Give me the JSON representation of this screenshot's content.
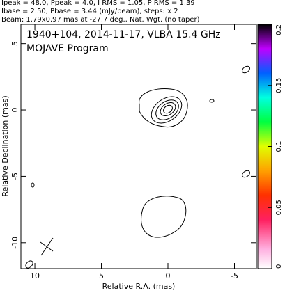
{
  "chart_data": {
    "type": "contour",
    "header": [
      "Ipeak = 48.0, Ppeak = 4.0, I RMS = 1.05, P RMS = 1.39",
      "Ibase = 2.50, Pbase = 3.44 (mJy/beam), steps: x 2",
      "Beam: 1.79x0.97 mas at -27.7 deg., Nat. Wgt. (no taper)"
    ],
    "title": "1940+104, 2014-11-17, VLBA 15.4 GHz",
    "subtitle": "MOJAVE Program",
    "x_label": "Relative R.A. (mas)",
    "y_label": "Relative Declination (mas)",
    "xlim": [
      11.05,
      -6.65
    ],
    "xticks": [
      10,
      5,
      0,
      -5
    ],
    "ylim": [
      -11.95,
      6.45
    ],
    "yticks": [
      5,
      0,
      -5,
      -10
    ],
    "colorbar": {
      "ylim": [
        0,
        0.2
      ],
      "yticks": [
        0,
        0.05,
        0.1,
        0.15,
        0.2
      ]
    }
  }
}
